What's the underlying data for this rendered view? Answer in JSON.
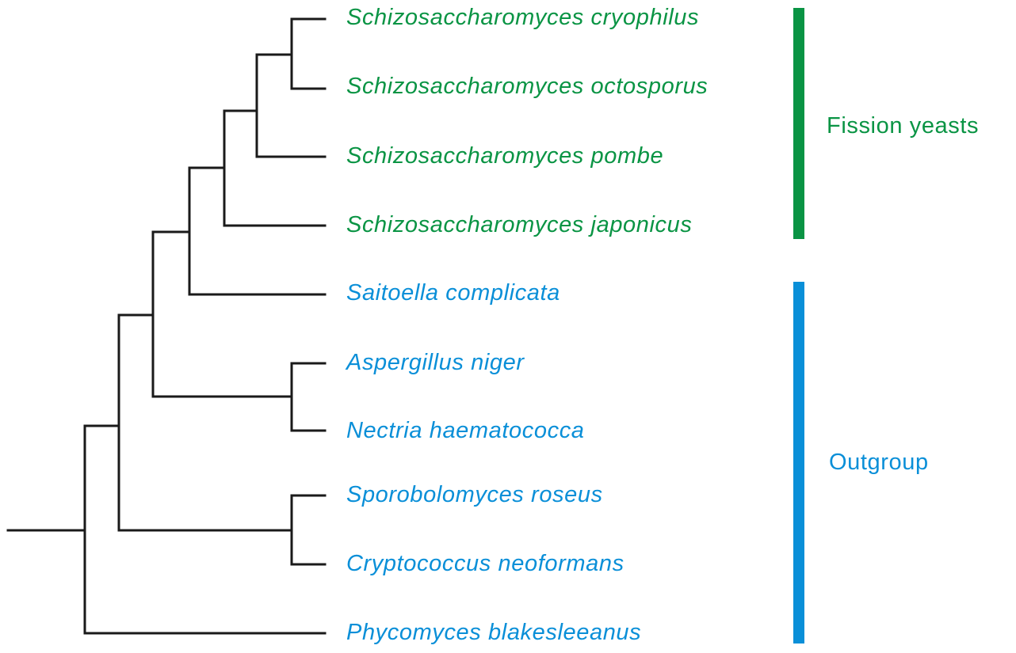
{
  "colors": {
    "branch": "#1a1a1a",
    "fission": "#0a9444",
    "outgroup": "#0a8fd8"
  },
  "taxa": [
    {
      "label": "Schizosaccharomyces cryophilus",
      "group": "fission"
    },
    {
      "label": "Schizosaccharomyces octosporus",
      "group": "fission"
    },
    {
      "label": "Schizosaccharomyces pombe",
      "group": "fission"
    },
    {
      "label": "Schizosaccharomyces japonicus",
      "group": "fission"
    },
    {
      "label": "Saitoella complicata",
      "group": "outgroup"
    },
    {
      "label": "Aspergillus niger",
      "group": "outgroup"
    },
    {
      "label": "Nectria haematococca",
      "group": "outgroup"
    },
    {
      "label": "Sporobolomyces roseus",
      "group": "outgroup"
    },
    {
      "label": "Cryptococcus neoformans",
      "group": "outgroup"
    },
    {
      "label": "Phycomyces blakesleeanus",
      "group": "outgroup"
    }
  ],
  "tree": "((((((Schizosaccharomyces cryophilus,Schizosaccharomyces octosporus),Schizosaccharomyces pombe),Schizosaccharomyces japonicus),Saitoella complicata),(Aspergillus niger,Nectria haematococca)),(Sporobolomyces roseus,Cryptococcus neoformans)),Phycomyces blakesleeanus)",
  "groups": [
    {
      "id": "fission",
      "label": "Fission yeasts"
    },
    {
      "id": "outgroup",
      "label": "Outgroup"
    }
  ]
}
